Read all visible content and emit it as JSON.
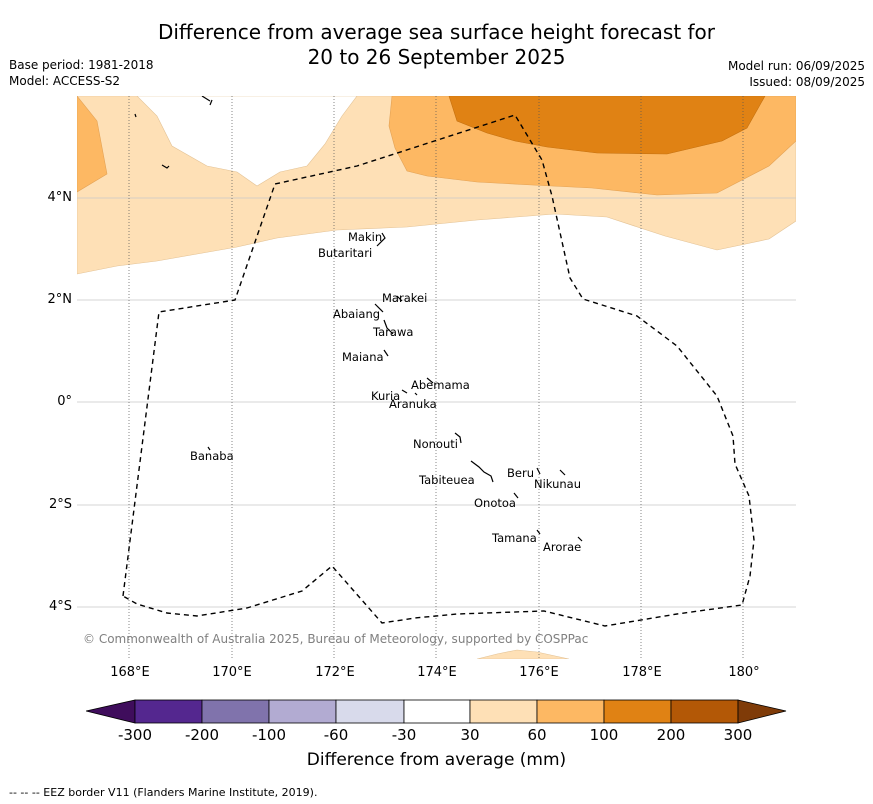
{
  "title_line1": "Difference from average sea surface height forecast for",
  "title_line2": "20 to 26 September 2025",
  "base_period": "Base period: 1981-2018",
  "model": "Model: ACCESS-S2",
  "model_run": "Model run: 06/09/2025",
  "issued": "Issued: 08/09/2025",
  "map": {
    "lon_range": [
      167,
      181
    ],
    "lat_range": [
      -5,
      6
    ],
    "x_ticks": [
      "168°E",
      "170°E",
      "172°E",
      "174°E",
      "176°E",
      "178°E",
      "180°"
    ],
    "y_ticks": [
      "4°N",
      "2°N",
      "0°",
      "2°S",
      "4°S"
    ],
    "places": [
      {
        "name": "Makin"
      },
      {
        "name": "Butaritari"
      },
      {
        "name": "Marakei"
      },
      {
        "name": "Abaiang"
      },
      {
        "name": "Tarawa"
      },
      {
        "name": "Maiana"
      },
      {
        "name": "Abemama"
      },
      {
        "name": "Kuria"
      },
      {
        "name": "Aranuka"
      },
      {
        "name": "Nonouti"
      },
      {
        "name": "Banaba"
      },
      {
        "name": "Beru"
      },
      {
        "name": "Nikunau"
      },
      {
        "name": "Tabiteuea"
      },
      {
        "name": "Onotoa"
      },
      {
        "name": "Tamana"
      },
      {
        "name": "Arorae"
      }
    ],
    "copyright": "© Commonwealth of Australia 2025, Bureau of Meteorology, supported by COSPPac"
  },
  "colorbar": {
    "title": "Difference from average (mm)",
    "labels": [
      "-300",
      "-200",
      "-100",
      "-60",
      "-30",
      "30",
      "60",
      "100",
      "200",
      "300"
    ],
    "colors": [
      "#3f0d5c",
      "#54278f",
      "#8073ac",
      "#b2abd2",
      "#d8daeb",
      "#ffffff",
      "#fee0b6",
      "#fdb863",
      "#e08214",
      "#b35806",
      "#7f3b08"
    ]
  },
  "footnote": "--  --  -- EEZ border V11 (Flanders Marine Institute, 2019)."
}
